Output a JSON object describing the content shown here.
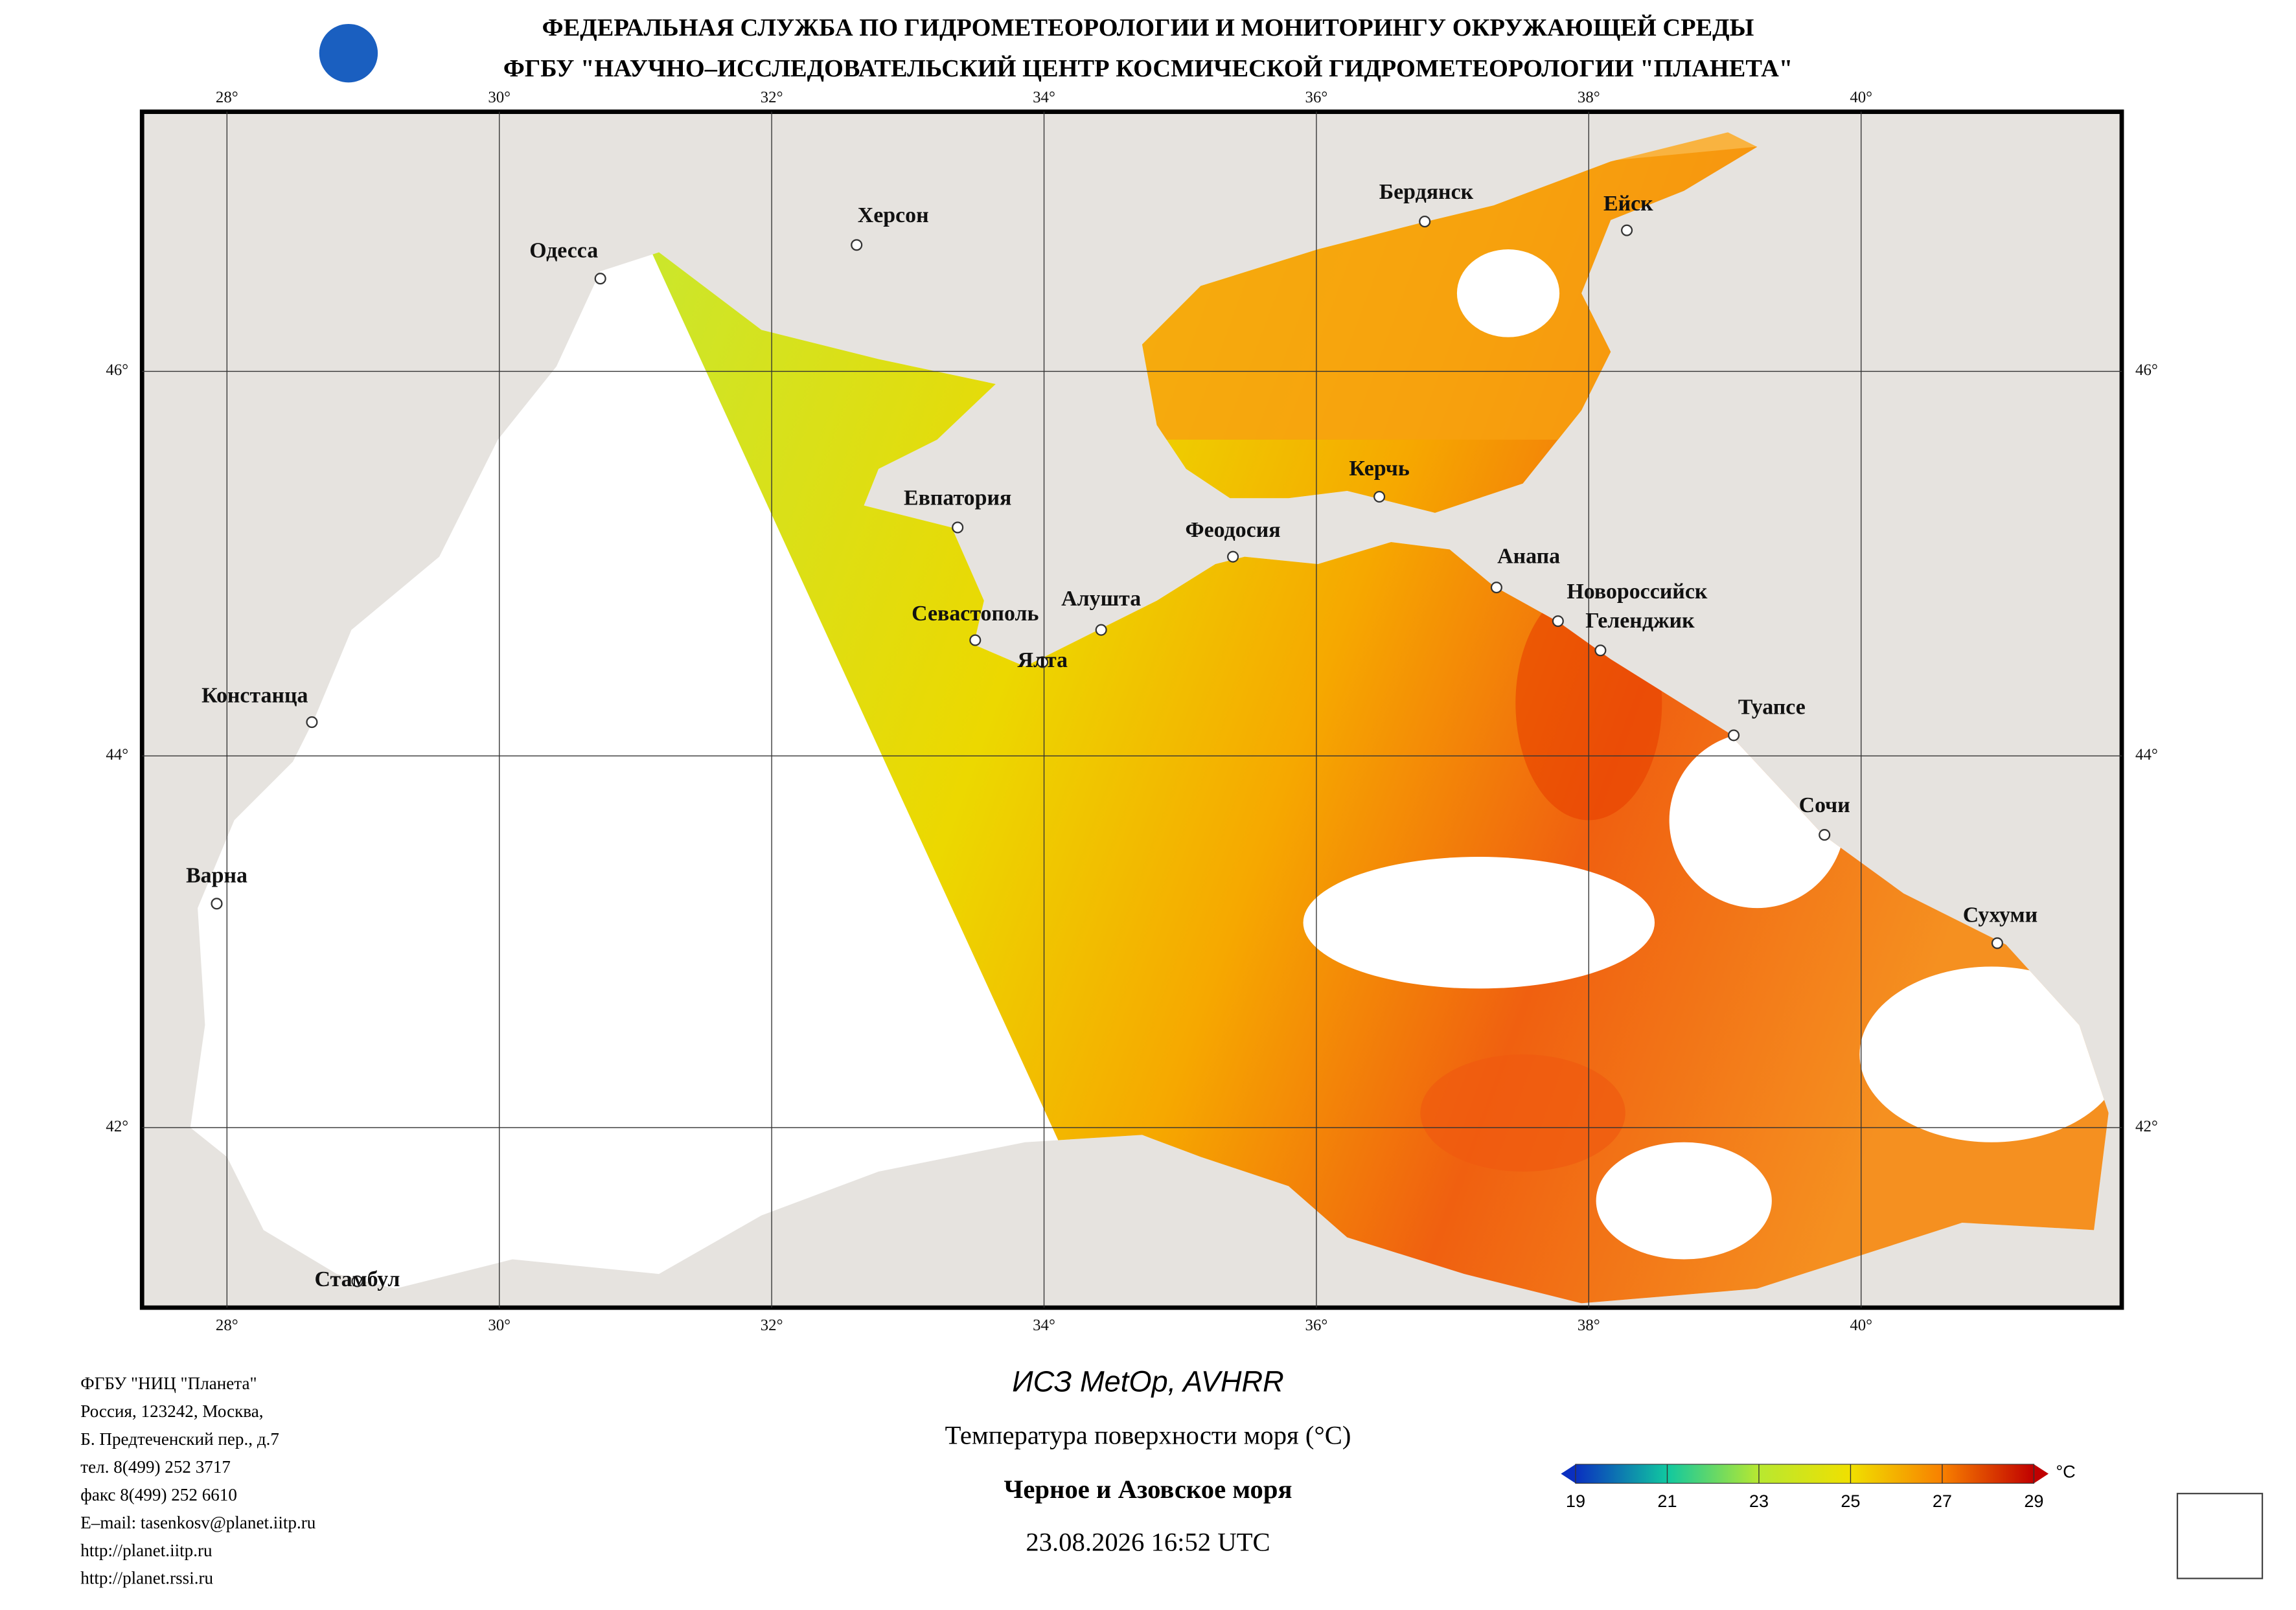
{
  "header": {
    "line1": "ФЕДЕРАЛЬНАЯ СЛУЖБА ПО ГИДРОМЕТЕОРОЛОГИИ И МОНИТОРИНГУ ОКРУЖАЮЩЕЙ СРЕДЫ",
    "line2": "ФГБУ \"НАУЧНО–ИССЛЕДОВАТЕЛЬСКИЙ ЦЕНТР КОСМИЧЕСКОЙ ГИДРОМЕТЕОРОЛОГИИ \"ПЛАНЕТА\""
  },
  "map": {
    "lon_ticks": [
      {
        "value": 28,
        "label": "28°"
      },
      {
        "value": 30,
        "label": "30°"
      },
      {
        "value": 32,
        "label": "32°"
      },
      {
        "value": 34,
        "label": "34°"
      },
      {
        "value": 36,
        "label": "36°"
      },
      {
        "value": 38,
        "label": "38°"
      },
      {
        "value": 40,
        "label": "40°"
      }
    ],
    "lat_ticks": [
      {
        "value": 46,
        "label": "46°"
      },
      {
        "value": 44,
        "label": "44°"
      },
      {
        "value": 42,
        "label": "42°"
      }
    ],
    "cities": [
      "Одесса",
      "Херсон",
      "Бердянск",
      "Ейск",
      "Евпатория",
      "Керчь",
      "Феодосия",
      "Анапа",
      "Новороссийск",
      "Геленджик",
      "Алушта",
      "Севастополь",
      "Ялта",
      "Туапсе",
      "Сочи",
      "Сухуми",
      "Констанца",
      "Варна",
      "Стамбул"
    ]
  },
  "footer": {
    "address": [
      "ФГБУ \"НИЦ \"Планета\"",
      "Россия, 123242, Москва,",
      "Б. Предтеченский пер., д.7",
      "тел. 8(499) 252 3717",
      "факс 8(499) 252 6610",
      "E–mail: tasenkosv@planet.iitp.ru",
      "http://planet.iitp.ru",
      "http://planet.rssi.ru"
    ],
    "satellite": "ИСЗ MetOp, AVHRR",
    "product": "Температура поверхности моря (°C)",
    "region": "Черное и Азовское моря",
    "datetime": "23.08.2026 16:52 UTC"
  },
  "colorbar": {
    "ticks": [
      19,
      21,
      23,
      25,
      27,
      29
    ],
    "unit": "°C",
    "colors": [
      "#0a2fc0",
      "#10c8a0",
      "#b8e830",
      "#f0e000",
      "#f88000",
      "#c00000"
    ]
  }
}
